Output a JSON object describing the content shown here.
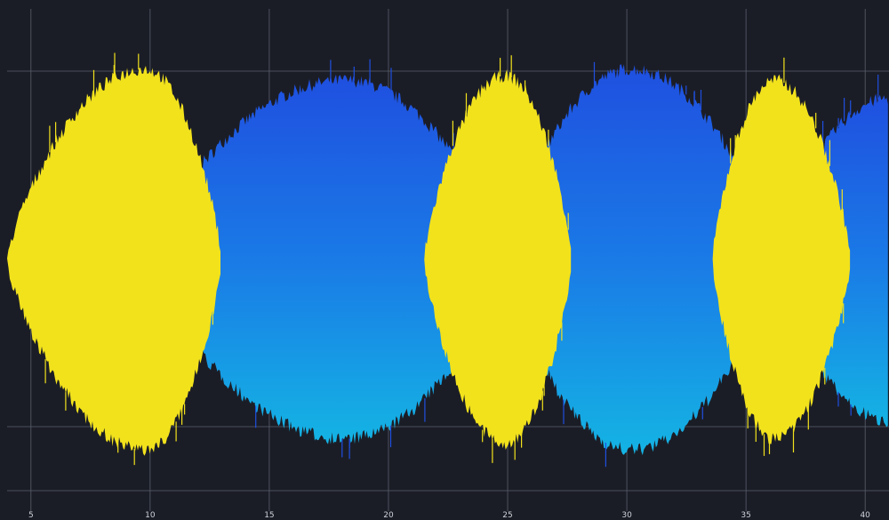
{
  "colors": {
    "background": "#1b1d26",
    "grid": "#5a5f6c",
    "yellow_series": "#f2e21c",
    "blue_top": "#1f4fe0",
    "blue_mid": "#1a7ae6",
    "blue_bottom": "#14b4e4"
  },
  "chart_data": {
    "type": "area",
    "title": "",
    "xlabel": "",
    "ylabel": "",
    "xlim": [
      4,
      41
    ],
    "ylim": [
      -1,
      1
    ],
    "grid": true,
    "x_ticks": [
      5,
      10,
      15,
      20,
      25,
      30,
      35,
      40
    ],
    "x_tick_labels": [
      "5",
      "10",
      "15",
      "20",
      "25",
      "30",
      "35",
      "40"
    ],
    "series": [
      {
        "color": "yellow",
        "lobes": [
          {
            "x_start": 4.0,
            "x_center": 9.8,
            "x_end": 13.0,
            "amplitude": 0.85
          },
          {
            "x_start": 21.5,
            "x_center": 24.9,
            "x_end": 27.7,
            "amplitude": 0.82
          },
          {
            "x_start": 33.6,
            "x_center": 36.2,
            "x_end": 39.4,
            "amplitude": 0.8
          }
        ]
      },
      {
        "color": "blue",
        "lobes": [
          {
            "x_start": 9.8,
            "x_center": 18.2,
            "x_end": 24.9,
            "amplitude": 0.8
          },
          {
            "x_start": 24.9,
            "x_center": 30.2,
            "x_end": 36.2,
            "amplitude": 0.85
          },
          {
            "x_start": 36.2,
            "x_center": 41.0,
            "x_end": 45.0,
            "amplitude": 0.72
          }
        ]
      }
    ]
  }
}
